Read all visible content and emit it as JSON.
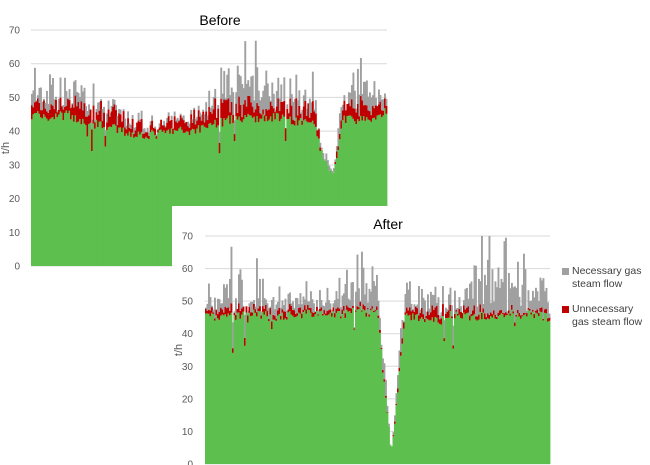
{
  "chart_data": [
    {
      "type": "area",
      "title": "Before",
      "ylabel": "t/h",
      "ylim": [
        0,
        70
      ],
      "yticks": [
        0,
        10,
        20,
        30,
        40,
        50,
        60,
        70
      ],
      "grid": true,
      "stacked": true,
      "series_order": [
        "base",
        "unnecessary",
        "necessary"
      ],
      "colors": {
        "base": "#5cbf4e",
        "unnecessary": "#c00000",
        "necessary": "#a0a0a0"
      },
      "profile": [
        {
          "x": 0.0,
          "base": 45,
          "unnecessary": 3,
          "necessary": 4
        },
        {
          "x": 0.05,
          "base": 44,
          "unnecessary": 3,
          "necessary": 6
        },
        {
          "x": 0.1,
          "base": 45,
          "unnecessary": 3,
          "necessary": 3
        },
        {
          "x": 0.15,
          "base": 42,
          "unnecessary": 5,
          "necessary": 3
        },
        {
          "x": 0.2,
          "base": 42,
          "unnecessary": 4,
          "necessary": 2
        },
        {
          "x": 0.25,
          "base": 40,
          "unnecessary": 4,
          "necessary": 1
        },
        {
          "x": 0.3,
          "base": 39,
          "unnecessary": 3,
          "necessary": 1
        },
        {
          "x": 0.35,
          "base": 39,
          "unnecessary": 2,
          "necessary": 1
        },
        {
          "x": 0.4,
          "base": 40,
          "unnecessary": 3,
          "necessary": 1
        },
        {
          "x": 0.45,
          "base": 40,
          "unnecessary": 4,
          "necessary": 1
        },
        {
          "x": 0.5,
          "base": 42,
          "unnecessary": 4,
          "necessary": 2
        },
        {
          "x": 0.55,
          "base": 43,
          "unnecessary": 5,
          "necessary": 4
        },
        {
          "x": 0.6,
          "base": 44,
          "unnecessary": 4,
          "necessary": 7
        },
        {
          "x": 0.65,
          "base": 44,
          "unnecessary": 4,
          "necessary": 8
        },
        {
          "x": 0.7,
          "base": 44,
          "unnecessary": 4,
          "necessary": 5
        },
        {
          "x": 0.75,
          "base": 43,
          "unnecessary": 4,
          "necessary": 6
        },
        {
          "x": 0.8,
          "base": 42,
          "unnecessary": 4,
          "necessary": 3
        },
        {
          "x": 0.82,
          "base": 32,
          "unnecessary": 0,
          "necessary": 2
        },
        {
          "x": 0.85,
          "base": 26,
          "unnecessary": 0,
          "necessary": 1
        },
        {
          "x": 0.88,
          "base": 44,
          "unnecessary": 4,
          "necessary": 3
        },
        {
          "x": 0.94,
          "base": 43,
          "unnecessary": 4,
          "necessary": 5
        },
        {
          "x": 1.0,
          "base": 46,
          "unnecessary": 2,
          "necessary": 2
        }
      ]
    },
    {
      "type": "area",
      "title": "After",
      "ylabel": "t/h",
      "ylim": [
        0,
        70
      ],
      "yticks": [
        0,
        10,
        20,
        30,
        40,
        50,
        60,
        70
      ],
      "grid": true,
      "stacked": true,
      "series_order": [
        "base",
        "unnecessary",
        "necessary"
      ],
      "colors": {
        "base": "#5cbf4e",
        "unnecessary": "#c00000",
        "necessary": "#a0a0a0"
      },
      "profile": [
        {
          "x": 0.0,
          "base": 46,
          "unnecessary": 1,
          "necessary": 3
        },
        {
          "x": 0.05,
          "base": 45,
          "unnecessary": 2,
          "necessary": 6
        },
        {
          "x": 0.1,
          "base": 46,
          "unnecessary": 2,
          "necessary": 8
        },
        {
          "x": 0.15,
          "base": 46,
          "unnecessary": 1,
          "necessary": 6
        },
        {
          "x": 0.2,
          "base": 45,
          "unnecessary": 2,
          "necessary": 5
        },
        {
          "x": 0.25,
          "base": 46,
          "unnecessary": 2,
          "necessary": 3
        },
        {
          "x": 0.3,
          "base": 46,
          "unnecessary": 1,
          "necessary": 4
        },
        {
          "x": 0.35,
          "base": 46,
          "unnecessary": 1,
          "necessary": 3
        },
        {
          "x": 0.4,
          "base": 46,
          "unnecessary": 1,
          "necessary": 4
        },
        {
          "x": 0.45,
          "base": 47,
          "unnecessary": 1,
          "necessary": 7
        },
        {
          "x": 0.5,
          "base": 46,
          "unnecessary": 1,
          "necessary": 8
        },
        {
          "x": 0.54,
          "base": 3,
          "unnecessary": 0,
          "necessary": 0
        },
        {
          "x": 0.58,
          "base": 45,
          "unnecessary": 2,
          "necessary": 6
        },
        {
          "x": 0.63,
          "base": 45,
          "unnecessary": 2,
          "necessary": 4
        },
        {
          "x": 0.68,
          "base": 44,
          "unnecessary": 3,
          "necessary": 4
        },
        {
          "x": 0.72,
          "base": 46,
          "unnecessary": 1,
          "necessary": 4
        },
        {
          "x": 0.78,
          "base": 45,
          "unnecessary": 2,
          "necessary": 8
        },
        {
          "x": 0.83,
          "base": 46,
          "unnecessary": 1,
          "necessary": 12
        },
        {
          "x": 0.88,
          "base": 46,
          "unnecessary": 1,
          "necessary": 10
        },
        {
          "x": 0.93,
          "base": 46,
          "unnecessary": 1,
          "necessary": 6
        },
        {
          "x": 1.0,
          "base": 45,
          "unnecessary": 1,
          "necessary": 4
        }
      ]
    }
  ],
  "legend": [
    {
      "label": "Necessary gas steam flow",
      "color": "#a0a0a0"
    },
    {
      "label": "Unnecessary gas steam flow",
      "color": "#c00000"
    }
  ]
}
